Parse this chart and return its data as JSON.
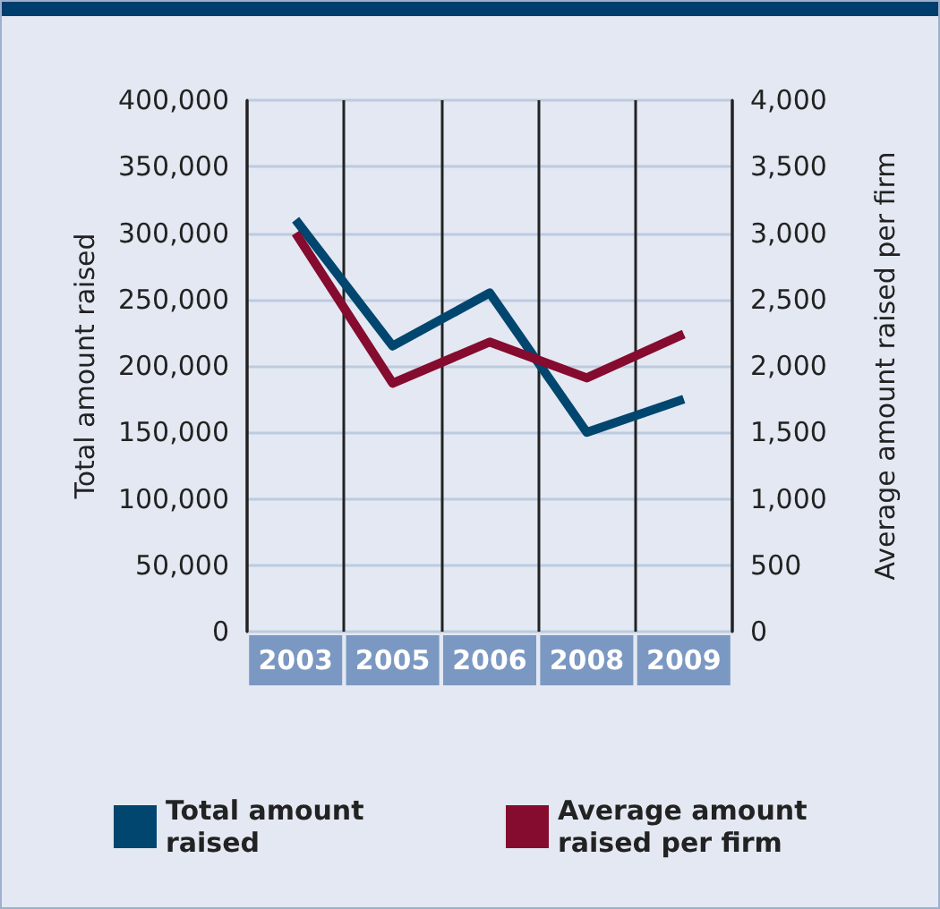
{
  "chart_data": {
    "type": "line",
    "categories": [
      "2003",
      "2005",
      "2006",
      "2008",
      "2009"
    ],
    "ylabel": "Total amount raised",
    "y2label": "Average amount raised per firm",
    "series": [
      {
        "name": "Total amount raised",
        "color": "#00466e",
        "values": [
          310000,
          215000,
          255000,
          150000,
          175000
        ]
      },
      {
        "name": "Average amount raised per firm",
        "color": "#850b2f",
        "axis": "y2",
        "values": [
          3000,
          1870,
          2180,
          1910,
          2240
        ]
      }
    ],
    "ylim": [
      0,
      400000
    ],
    "yticks": [
      0,
      {
        "value": 50000,
        "label": "50,000"
      },
      {
        "value": 100000,
        "label": "100,000"
      },
      {
        "value": 150000,
        "label": "150,000"
      },
      {
        "value": 200000,
        "label": "200,000"
      },
      {
        "value": 250000,
        "label": "250,000"
      },
      {
        "value": 300000,
        "label": "300,000"
      },
      {
        "value": 350000,
        "label": "350,000"
      },
      {
        "value": 400000,
        "label": "400,000"
      }
    ],
    "y2lim": [
      0,
      4000
    ],
    "y2ticks": [
      0,
      500,
      {
        "value": 1000,
        "label": "1,000"
      },
      {
        "value": 1500,
        "label": "1,500"
      },
      {
        "value": 2000,
        "label": "2,000"
      },
      {
        "value": 2500,
        "label": "2,500"
      },
      {
        "value": 3000,
        "label": "3,000"
      },
      {
        "value": 3500,
        "label": "3,500"
      },
      {
        "value": 4000,
        "label": "4,000"
      }
    ],
    "grid": true,
    "legend": "bottom",
    "marker": "none",
    "line_style": "solid"
  }
}
